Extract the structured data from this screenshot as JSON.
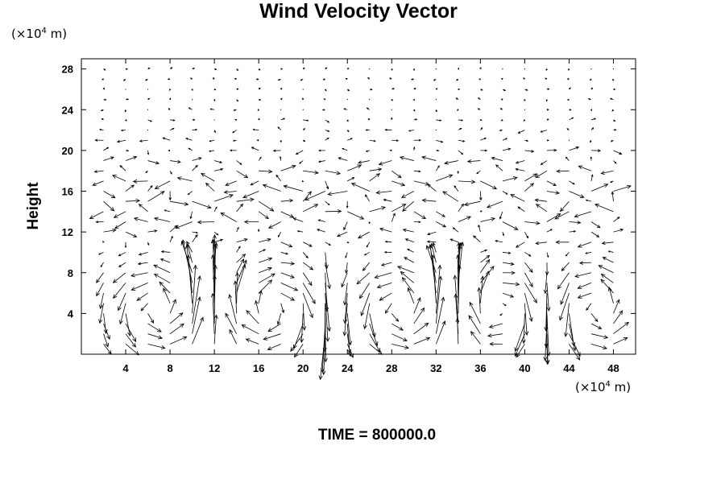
{
  "chart_data": {
    "type": "vector-field",
    "title": "Wind Velocity Vector",
    "xlabel": "",
    "ylabel": "Height",
    "x_unit": {
      "prefix": "(×10",
      "exponent": "4",
      "suffix": " m)"
    },
    "y_unit": {
      "prefix": "(×10",
      "exponent": "4",
      "suffix": " m)"
    },
    "xlim": [
      0,
      50
    ],
    "ylim": [
      0,
      29
    ],
    "x_ticks": [
      4,
      8,
      12,
      16,
      20,
      24,
      28,
      32,
      36,
      40,
      44,
      48
    ],
    "y_ticks": [
      4,
      8,
      12,
      16,
      20,
      24,
      28
    ],
    "grid_dx": 2,
    "grid_dy": 1,
    "grid": false,
    "footer": "TIME = 800000.0",
    "annotation": ""
  }
}
